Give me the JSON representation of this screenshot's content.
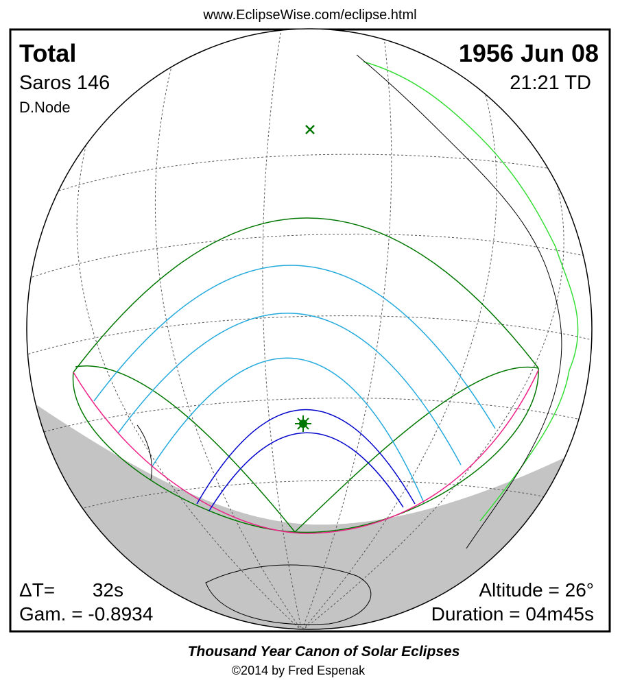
{
  "header": {
    "url": "www.EclipseWise.com/eclipse.html"
  },
  "eclipse": {
    "type": "Total",
    "saros": "Saros 146",
    "node": "D.Node",
    "date": "1956 Jun 08",
    "time": "21:21 TD"
  },
  "parameters": {
    "delta_t_label": "ΔT=",
    "delta_t_value": "32s",
    "gamma": "Gam. = -0.8934",
    "altitude": "Altitude = 26°",
    "duration": "Duration = 04m45s"
  },
  "footer": {
    "title": "Thousand Year Canon of Solar Eclipses",
    "credit": "©2014 by Fred Espenak"
  }
}
